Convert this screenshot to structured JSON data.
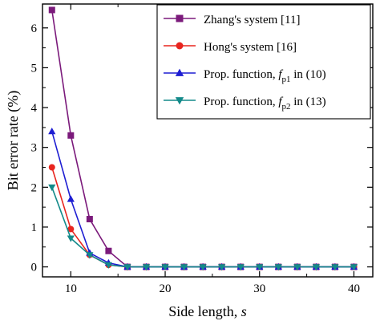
{
  "chart_data": {
    "type": "line",
    "xlabel": "Side length, ",
    "xlabel_var": "s",
    "ylabel": "Bit error rate (%)",
    "xlim": [
      7,
      42
    ],
    "ylim": [
      -0.25,
      6.6
    ],
    "x_ticks": [
      10,
      20,
      30,
      40
    ],
    "x_minor_ticks": [
      15,
      25,
      35
    ],
    "y_ticks": [
      0,
      1,
      2,
      3,
      4,
      5,
      6
    ],
    "grid": false,
    "legend_position": "top-right",
    "x": [
      8,
      10,
      12,
      14,
      16,
      18,
      20,
      22,
      24,
      26,
      28,
      30,
      32,
      34,
      36,
      38,
      40
    ],
    "series": [
      {
        "name": "Zhang's system [11]",
        "color": "#7B1A7B",
        "marker": "square",
        "values": [
          6.45,
          3.3,
          1.2,
          0.4,
          0,
          0,
          0,
          0,
          0,
          0,
          0,
          0,
          0,
          0,
          0,
          0,
          0
        ]
      },
      {
        "name": "Hong's system [16]",
        "color": "#E8251F",
        "marker": "circle",
        "values": [
          2.5,
          0.95,
          0.3,
          0.05,
          0,
          0,
          0,
          0,
          0,
          0,
          0,
          0,
          0,
          0,
          0,
          0,
          0
        ]
      },
      {
        "name_prefix": "Prop. function, ",
        "name_var": "f",
        "name_sub": "p1",
        "name_suffix": " in (10)",
        "color": "#1E1ED2",
        "marker": "triangle-up",
        "values": [
          3.4,
          1.7,
          0.35,
          0.1,
          0,
          0,
          0,
          0,
          0,
          0,
          0,
          0,
          0,
          0,
          0,
          0,
          0
        ]
      },
      {
        "name_prefix": "Prop. function, ",
        "name_var": "f",
        "name_sub": "p2",
        "name_suffix": " in (13)",
        "color": "#138A8A",
        "marker": "triangle-down",
        "values": [
          2.0,
          0.72,
          0.3,
          0.05,
          0,
          0,
          0,
          0,
          0,
          0,
          0,
          0,
          0,
          0,
          0,
          0,
          0
        ]
      }
    ]
  }
}
